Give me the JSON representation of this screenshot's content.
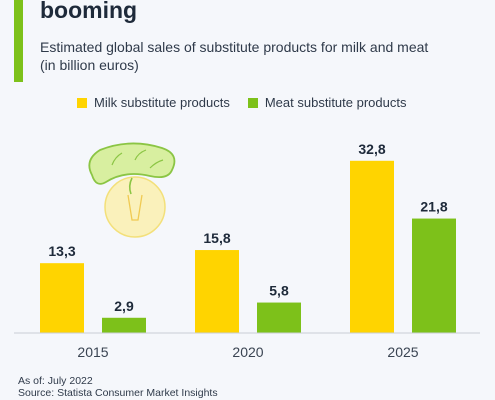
{
  "header": {
    "title": "booming",
    "subtitle": "Estimated global sales of substitute products for milk and meat (in billion euros)"
  },
  "colors": {
    "accent": "#7dc11a",
    "milk": "#ffd400",
    "meat": "#7dc11a",
    "label": "#1e2a3a"
  },
  "illustration": {
    "icon": "plant-bulb-sausage-icon"
  },
  "chart_data": {
    "type": "bar",
    "categories": [
      "2015",
      "2020",
      "2025"
    ],
    "series": [
      {
        "name": "Milk substitute products",
        "values": [
          13.3,
          15.8,
          32.8
        ],
        "labels": [
          "13,3",
          "15,8",
          "32,8"
        ]
      },
      {
        "name": "Meat substitute products",
        "values": [
          2.9,
          5.8,
          21.8
        ],
        "labels": [
          "2,9",
          "5,8",
          "21,8"
        ]
      }
    ],
    "legend_position": "top",
    "grid": false
  },
  "footer": {
    "as_of": "As of: July 2022",
    "source": "Source: Statista Consumer Market Insights"
  }
}
